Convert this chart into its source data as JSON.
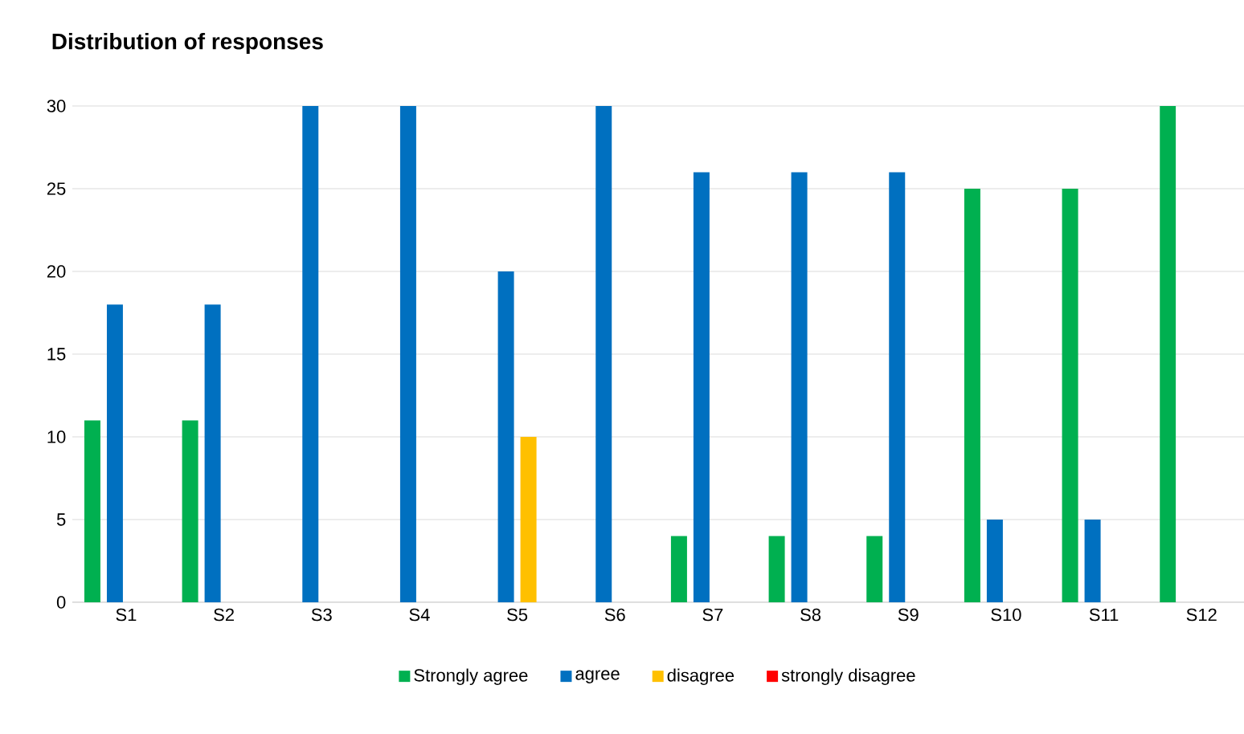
{
  "chart_data": {
    "type": "bar",
    "title": "Distribution of responses",
    "categories": [
      "S1",
      "S2",
      "S3",
      "S4",
      "S5",
      "S6",
      "S7",
      "S8",
      "S9",
      "S10",
      "S11",
      "S12"
    ],
    "series": [
      {
        "name": "Strongly agree",
        "color": "#00b050",
        "values": [
          11,
          11,
          0,
          0,
          0,
          0,
          4,
          4,
          4,
          25,
          25,
          30
        ]
      },
      {
        "name": "agree",
        "color": "#0070c0",
        "values": [
          18,
          18,
          30,
          30,
          20,
          30,
          26,
          26,
          26,
          5,
          5,
          0
        ]
      },
      {
        "name": "disagree",
        "color": "#ffc000",
        "values": [
          0,
          0,
          0,
          0,
          10,
          0,
          0,
          0,
          0,
          0,
          0,
          0
        ]
      },
      {
        "name": "strongly disagree",
        "color": "#ff0000",
        "values": [
          0,
          0,
          0,
          0,
          0,
          0,
          0,
          0,
          0,
          0,
          0,
          0
        ]
      }
    ],
    "ylim": [
      0,
      30
    ],
    "yticks": [
      0,
      5,
      10,
      15,
      20,
      25,
      30
    ],
    "grid": "y",
    "legend": "bottom"
  }
}
